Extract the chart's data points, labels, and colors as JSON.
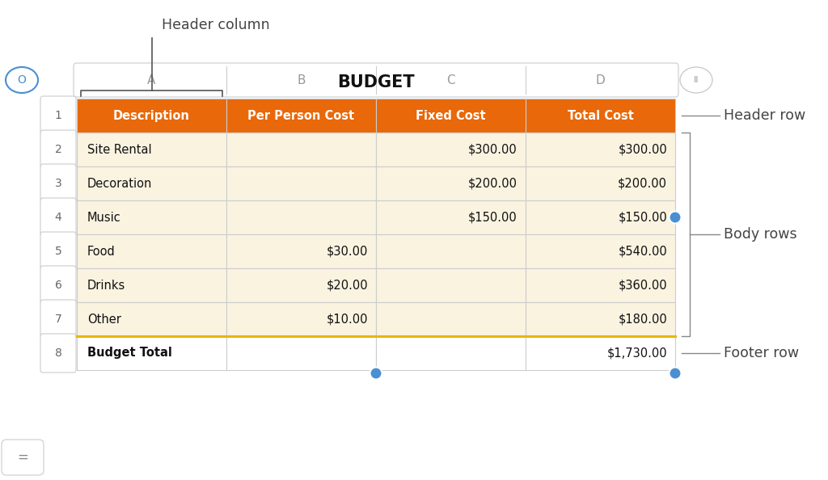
{
  "title": "BUDGET",
  "header_row": [
    "Description",
    "Per Person Cost",
    "Fixed Cost",
    "Total Cost"
  ],
  "body_rows": [
    [
      "Site Rental",
      "",
      "$300.00",
      "$300.00"
    ],
    [
      "Decoration",
      "",
      "$200.00",
      "$200.00"
    ],
    [
      "Music",
      "",
      "$150.00",
      "$150.00"
    ],
    [
      "Food",
      "$30.00",
      "",
      "$540.00"
    ],
    [
      "Drinks",
      "$20.00",
      "",
      "$360.00"
    ],
    [
      "Other",
      "$10.00",
      "",
      "$180.00"
    ]
  ],
  "footer_row": [
    "Budget Total",
    "",
    "",
    "$1,730.00"
  ],
  "row_numbers": [
    "1",
    "2",
    "3",
    "4",
    "5",
    "6",
    "7",
    "8"
  ],
  "col_letters": [
    "A",
    "B",
    "C",
    "D"
  ],
  "header_bg": "#E8680A",
  "header_text": "#FFFFFF",
  "body_bg": "#FAF3E0",
  "body_text": "#111111",
  "footer_bg": "#FFFFFF",
  "footer_text": "#111111",
  "border_color": "#CCCCCC",
  "row_num_bg": "#FFFFFF",
  "row_num_border": "#CCCCCC",
  "col_bar_bg": "#FFFFFF",
  "col_bar_border": "#CCCCCC",
  "footer_top_color": "#E6B800",
  "annotation_color": "#444444",
  "handle_color": "#4A8FD4",
  "bg_color": "#FFFFFF",
  "o_button_color": "#4A8FD4",
  "label_header_col": "Header column",
  "label_header_row": "Header row",
  "label_body_rows": "Body rows",
  "label_footer_row": "Footer row"
}
